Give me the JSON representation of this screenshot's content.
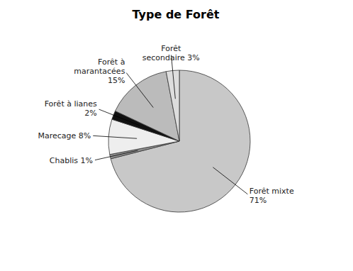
{
  "chart_data": {
    "type": "pie",
    "title": "Type de Forêt",
    "categories": [
      "Forêt mixte\n71%",
      "Chablis 1%",
      "Marecage 8%",
      "Forêt à lianes\n2%",
      "Forêt à\nmarantacées\n15%",
      "Forêt\nsecondaire  3%"
    ],
    "values": [
      71,
      1,
      8,
      2,
      15,
      3
    ],
    "colors": [
      "#c8c8c8",
      "#909090",
      "#eeeeee",
      "#111111",
      "#bbbbbb",
      "#dddddd"
    ]
  }
}
